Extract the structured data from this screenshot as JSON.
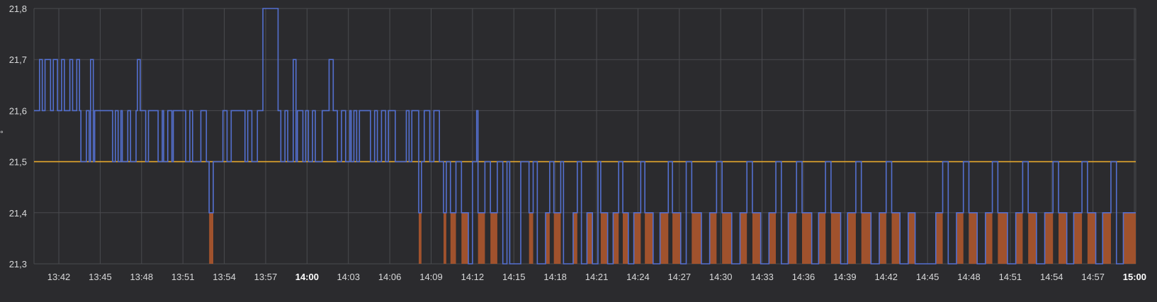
{
  "chart_data": {
    "type": "line",
    "step": true,
    "y_ticks": [
      "21,8",
      "21,7",
      "21,6",
      "21,5",
      "21,4",
      "21,3"
    ],
    "ylim": [
      21.3,
      21.8
    ],
    "y_axis_label": "°",
    "x_ticks": [
      {
        "label": "13:42",
        "t": 42
      },
      {
        "label": "13:45",
        "t": 45
      },
      {
        "label": "13:48",
        "t": 48
      },
      {
        "label": "13:51",
        "t": 51
      },
      {
        "label": "13:54",
        "t": 54
      },
      {
        "label": "13:57",
        "t": 57
      },
      {
        "label": "14:00",
        "t": 60,
        "bold": true
      },
      {
        "label": "14:03",
        "t": 63
      },
      {
        "label": "14:06",
        "t": 66
      },
      {
        "label": "14:09",
        "t": 69
      },
      {
        "label": "14:12",
        "t": 72
      },
      {
        "label": "14:15",
        "t": 75
      },
      {
        "label": "14:18",
        "t": 78
      },
      {
        "label": "14:21",
        "t": 81
      },
      {
        "label": "14:24",
        "t": 84
      },
      {
        "label": "14:27",
        "t": 87
      },
      {
        "label": "14:30",
        "t": 90
      },
      {
        "label": "14:33",
        "t": 93
      },
      {
        "label": "14:36",
        "t": 96
      },
      {
        "label": "14:39",
        "t": 99
      },
      {
        "label": "14:42",
        "t": 102
      },
      {
        "label": "14:45",
        "t": 105
      },
      {
        "label": "14:48",
        "t": 108
      },
      {
        "label": "14:51",
        "t": 111
      },
      {
        "label": "14:54",
        "t": 114
      },
      {
        "label": "14:57",
        "t": 117
      },
      {
        "label": "15:00",
        "t": 120,
        "bold": true
      }
    ],
    "xlim": [
      40.2,
      120.1
    ],
    "threshold": {
      "value": 21.5,
      "color": "#e5a82c"
    },
    "series": [
      {
        "color": "#5470d0",
        "fill_below_threshold_color": "#a0522d",
        "points": [
          [
            40.2,
            21.6
          ],
          [
            40.6,
            21.7
          ],
          [
            40.8,
            21.6
          ],
          [
            41.0,
            21.7
          ],
          [
            41.4,
            21.6
          ],
          [
            41.6,
            21.7
          ],
          [
            41.9,
            21.6
          ],
          [
            42.2,
            21.7
          ],
          [
            42.4,
            21.6
          ],
          [
            42.5,
            21.6
          ],
          [
            42.8,
            21.7
          ],
          [
            43.0,
            21.6
          ],
          [
            43.3,
            21.7
          ],
          [
            43.5,
            21.6
          ],
          [
            43.6,
            21.5
          ],
          [
            44.0,
            21.6
          ],
          [
            44.2,
            21.5
          ],
          [
            44.3,
            21.7
          ],
          [
            44.5,
            21.5
          ],
          [
            44.6,
            21.6
          ],
          [
            45.9,
            21.5
          ],
          [
            46.1,
            21.6
          ],
          [
            46.3,
            21.5
          ],
          [
            46.5,
            21.6
          ],
          [
            46.6,
            21.5
          ],
          [
            47.0,
            21.6
          ],
          [
            47.2,
            21.5
          ],
          [
            47.6,
            21.6
          ],
          [
            47.7,
            21.7
          ],
          [
            47.9,
            21.6
          ],
          [
            48.3,
            21.5
          ],
          [
            48.5,
            21.6
          ],
          [
            49.2,
            21.5
          ],
          [
            49.5,
            21.6
          ],
          [
            49.6,
            21.5
          ],
          [
            49.9,
            21.6
          ],
          [
            50.2,
            21.5
          ],
          [
            50.3,
            21.6
          ],
          [
            51.2,
            21.5
          ],
          [
            51.5,
            21.6
          ],
          [
            51.7,
            21.5
          ],
          [
            52.3,
            21.6
          ],
          [
            52.7,
            21.5
          ],
          [
            52.9,
            21.4
          ],
          [
            53.2,
            21.5
          ],
          [
            53.6,
            21.5
          ],
          [
            53.9,
            21.6
          ],
          [
            54.2,
            21.5
          ],
          [
            54.5,
            21.6
          ],
          [
            55.5,
            21.5
          ],
          [
            55.7,
            21.6
          ],
          [
            56.0,
            21.5
          ],
          [
            56.4,
            21.6
          ],
          [
            56.8,
            21.8
          ],
          [
            57.9,
            21.6
          ],
          [
            58.1,
            21.5
          ],
          [
            58.4,
            21.6
          ],
          [
            58.6,
            21.5
          ],
          [
            59.0,
            21.7
          ],
          [
            59.2,
            21.5
          ],
          [
            59.3,
            21.6
          ],
          [
            59.7,
            21.5
          ],
          [
            59.9,
            21.6
          ],
          [
            60.1,
            21.5
          ],
          [
            60.4,
            21.6
          ],
          [
            60.6,
            21.5
          ],
          [
            61.1,
            21.6
          ],
          [
            61.6,
            21.7
          ],
          [
            61.9,
            21.6
          ],
          [
            62.2,
            21.5
          ],
          [
            62.5,
            21.6
          ],
          [
            62.8,
            21.5
          ],
          [
            63.1,
            21.6
          ],
          [
            63.2,
            21.5
          ],
          [
            63.4,
            21.6
          ],
          [
            63.6,
            21.5
          ],
          [
            63.8,
            21.6
          ],
          [
            64.6,
            21.5
          ],
          [
            64.9,
            21.6
          ],
          [
            65.1,
            21.5
          ],
          [
            65.4,
            21.6
          ],
          [
            65.7,
            21.5
          ],
          [
            65.9,
            21.6
          ],
          [
            66.4,
            21.5
          ],
          [
            67.2,
            21.6
          ],
          [
            67.4,
            21.5
          ],
          [
            67.6,
            21.6
          ],
          [
            68.1,
            21.4
          ],
          [
            68.3,
            21.5
          ],
          [
            68.5,
            21.6
          ],
          [
            68.9,
            21.5
          ],
          [
            69.2,
            21.6
          ],
          [
            69.6,
            21.5
          ],
          [
            69.9,
            21.4
          ],
          [
            70.1,
            21.5
          ],
          [
            70.4,
            21.4
          ],
          [
            70.8,
            21.5
          ],
          [
            71.2,
            21.4
          ],
          [
            71.7,
            21.3
          ],
          [
            72.0,
            21.5
          ],
          [
            72.3,
            21.6
          ],
          [
            72.4,
            21.4
          ],
          [
            72.9,
            21.5
          ],
          [
            73.3,
            21.4
          ],
          [
            73.8,
            21.5
          ],
          [
            74.2,
            21.3
          ],
          [
            74.5,
            21.5
          ],
          [
            74.7,
            21.3
          ],
          [
            75.5,
            21.5
          ],
          [
            76.1,
            21.4
          ],
          [
            76.4,
            21.5
          ],
          [
            76.7,
            21.3
          ],
          [
            77.3,
            21.4
          ],
          [
            77.6,
            21.5
          ],
          [
            77.9,
            21.4
          ],
          [
            78.4,
            21.5
          ],
          [
            78.6,
            21.3
          ],
          [
            79.3,
            21.4
          ],
          [
            79.6,
            21.5
          ],
          [
            79.9,
            21.3
          ],
          [
            80.3,
            21.4
          ],
          [
            80.7,
            21.3
          ],
          [
            81.1,
            21.5
          ],
          [
            81.3,
            21.4
          ],
          [
            81.8,
            21.3
          ],
          [
            82.2,
            21.4
          ],
          [
            82.6,
            21.5
          ],
          [
            82.9,
            21.4
          ],
          [
            83.3,
            21.3
          ],
          [
            83.7,
            21.4
          ],
          [
            84.2,
            21.5
          ],
          [
            84.5,
            21.4
          ],
          [
            85.1,
            21.3
          ],
          [
            85.6,
            21.4
          ],
          [
            86.2,
            21.5
          ],
          [
            86.5,
            21.4
          ],
          [
            87.1,
            21.3
          ],
          [
            87.5,
            21.5
          ],
          [
            87.9,
            21.4
          ],
          [
            88.6,
            21.3
          ],
          [
            89.2,
            21.4
          ],
          [
            89.7,
            21.5
          ],
          [
            90.1,
            21.4
          ],
          [
            90.8,
            21.3
          ],
          [
            91.4,
            21.4
          ],
          [
            91.9,
            21.5
          ],
          [
            92.3,
            21.4
          ],
          [
            92.9,
            21.3
          ],
          [
            93.5,
            21.4
          ],
          [
            94.0,
            21.5
          ],
          [
            94.4,
            21.3
          ],
          [
            94.9,
            21.4
          ],
          [
            95.5,
            21.5
          ],
          [
            95.9,
            21.4
          ],
          [
            96.6,
            21.3
          ],
          [
            97.1,
            21.4
          ],
          [
            97.6,
            21.5
          ],
          [
            98.0,
            21.4
          ],
          [
            98.7,
            21.3
          ],
          [
            99.2,
            21.4
          ],
          [
            99.8,
            21.5
          ],
          [
            100.2,
            21.4
          ],
          [
            100.9,
            21.3
          ],
          [
            101.5,
            21.4
          ],
          [
            102.0,
            21.5
          ],
          [
            102.4,
            21.4
          ],
          [
            103.0,
            21.3
          ],
          [
            103.6,
            21.4
          ],
          [
            104.1,
            21.3
          ],
          [
            105.6,
            21.4
          ],
          [
            106.1,
            21.5
          ],
          [
            106.5,
            21.3
          ],
          [
            107.1,
            21.4
          ],
          [
            107.6,
            21.5
          ],
          [
            108.0,
            21.4
          ],
          [
            108.6,
            21.3
          ],
          [
            109.2,
            21.4
          ],
          [
            109.7,
            21.5
          ],
          [
            110.1,
            21.4
          ],
          [
            110.8,
            21.3
          ],
          [
            111.4,
            21.4
          ],
          [
            111.9,
            21.5
          ],
          [
            112.3,
            21.4
          ],
          [
            112.9,
            21.3
          ],
          [
            113.5,
            21.4
          ],
          [
            114.1,
            21.5
          ],
          [
            114.5,
            21.4
          ],
          [
            115.1,
            21.3
          ],
          [
            115.6,
            21.4
          ],
          [
            116.2,
            21.5
          ],
          [
            116.6,
            21.4
          ],
          [
            117.2,
            21.3
          ],
          [
            117.7,
            21.4
          ],
          [
            118.3,
            21.5
          ],
          [
            118.7,
            21.3
          ],
          [
            119.2,
            21.4
          ],
          [
            120.1,
            21.4
          ]
        ]
      }
    ]
  }
}
